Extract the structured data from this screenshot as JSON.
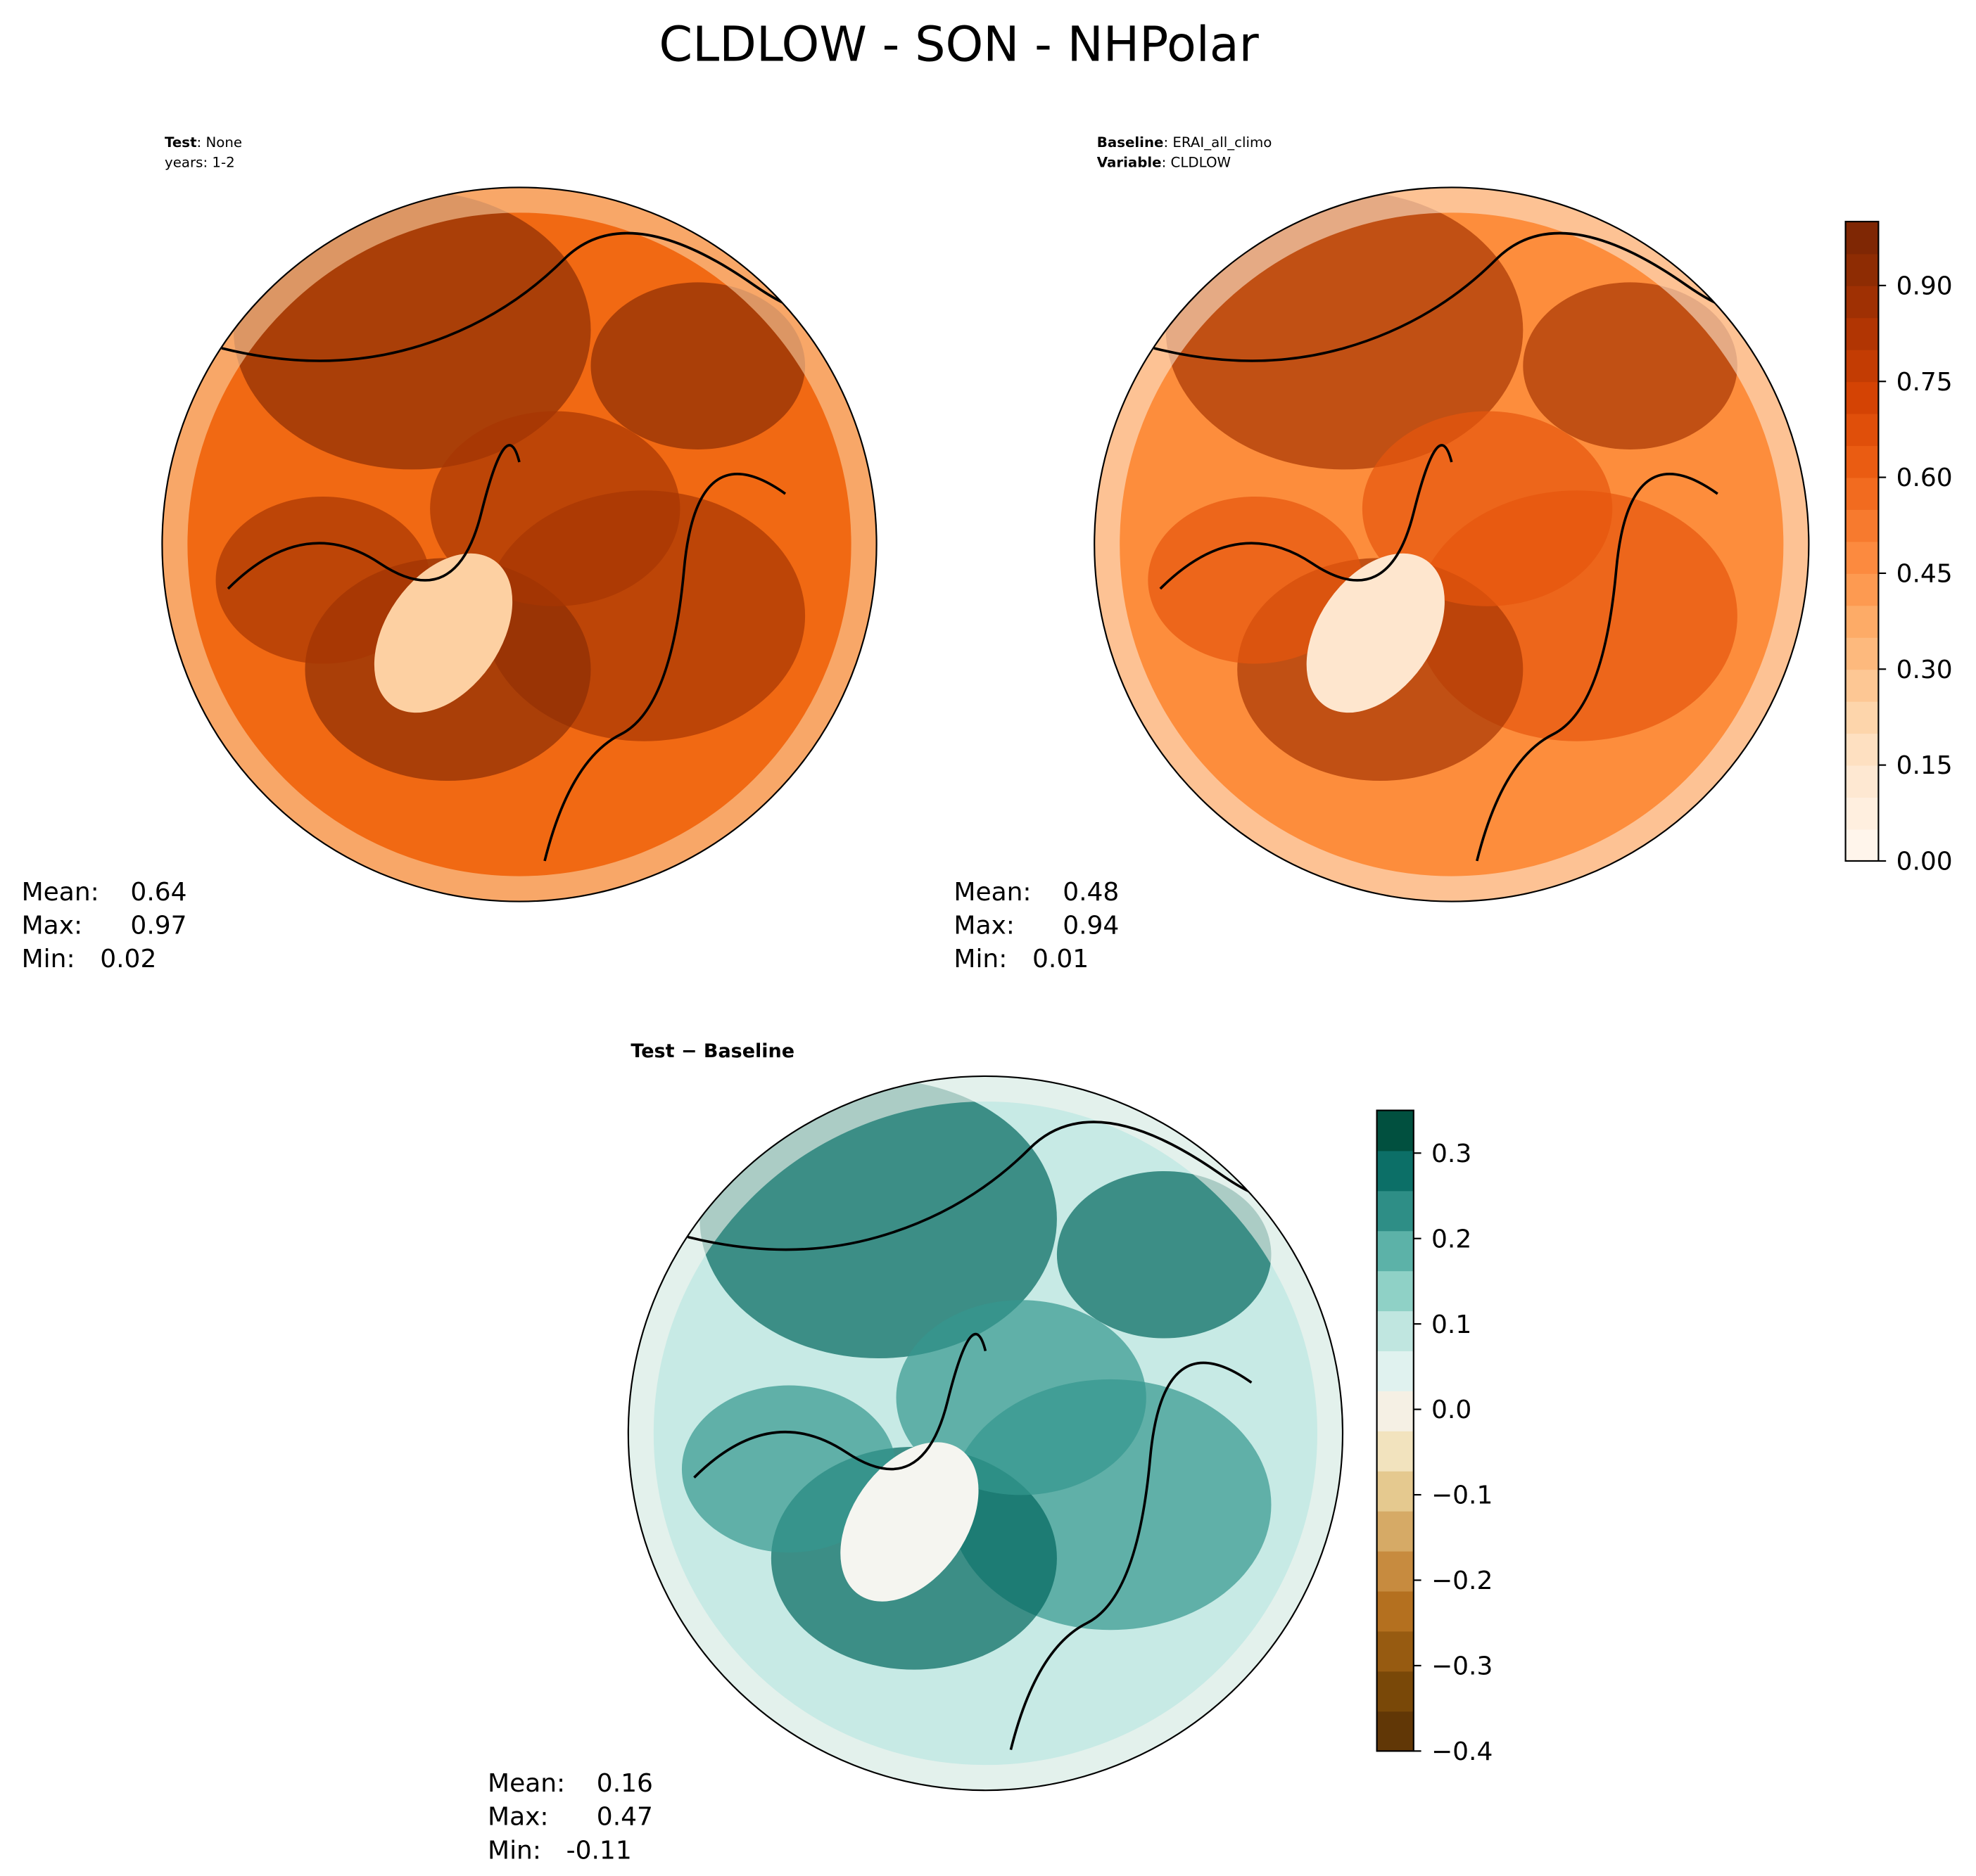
{
  "title": "CLDLOW - SON - NHPolar",
  "chart_data": [
    {
      "type": "map",
      "header": [
        {
          "bold": "Test",
          "text": ": None"
        },
        {
          "text": "years: 1-2"
        }
      ],
      "stats": [
        {
          "label": "Mean:",
          "value": 0.64
        },
        {
          "label": "Max:",
          "value": 0.97
        },
        {
          "label": "Min:",
          "value": 0.02
        }
      ],
      "palette": [
        "#fdd0a2",
        "#f16913",
        "#a63603",
        "#8c2d04"
      ]
    },
    {
      "type": "map",
      "header": [
        {
          "bold": "Baseline",
          "text": ": ERAI_all_climo"
        },
        {
          "bold": "Variable",
          "text": ": CLDLOW"
        }
      ],
      "stats": [
        {
          "label": "Mean:",
          "value": 0.48
        },
        {
          "label": "Max:",
          "value": 0.94
        },
        {
          "label": "Min:",
          "value": 0.01
        }
      ],
      "palette": [
        "#fee6ce",
        "#fd8d3c",
        "#e6550d",
        "#a63603"
      ],
      "ylim": [
        0,
        1.0
      ],
      "yticks": [
        {
          "value": 0,
          "label": "0.00"
        },
        {
          "value": 0.15,
          "label": "0.15"
        },
        {
          "value": 0.3,
          "label": "0.30"
        },
        {
          "value": 0.45,
          "label": "0.45"
        },
        {
          "value": 0.6,
          "label": "0.60"
        },
        {
          "value": 0.75,
          "label": "0.75"
        },
        {
          "value": 0.9,
          "label": "0.90"
        }
      ],
      "colors": [
        "#fff5eb",
        "#ffefdf",
        "#fee8d2",
        "#fee0c1",
        "#fdd5ab",
        "#fdc794",
        "#fdb97d",
        "#fdab67",
        "#fd9a51",
        "#fc8a3f",
        "#f77a2e",
        "#f26b1f",
        "#ea5c12",
        "#e04f0a",
        "#d44304",
        "#c33c03",
        "#b13503",
        "#9f3003",
        "#8e2c03",
        "#7f2704"
      ]
    },
    {
      "type": "map",
      "header": [
        {
          "bold": "Test − Baseline"
        }
      ],
      "stats": [
        {
          "label": "Mean:",
          "value": 0.16
        },
        {
          "label": "Max:",
          "value": 0.47
        },
        {
          "label": "Min:",
          "value": -0.11
        }
      ],
      "palette": [
        "#f5f5f0",
        "#c7eae5",
        "#35978f",
        "#01665e"
      ],
      "ylim": [
        -0.4,
        0.35
      ],
      "yticks": [
        {
          "value": -0.4,
          "label": "−0.4"
        },
        {
          "value": -0.3,
          "label": "−0.3"
        },
        {
          "value": -0.2,
          "label": "−0.2"
        },
        {
          "value": -0.1,
          "label": "−0.1"
        },
        {
          "value": 0,
          "label": "0.0"
        },
        0.1,
        0.2,
        0.3
      ],
      "colors": [
        "#613706",
        "#794808",
        "#975b11",
        "#b4701f",
        "#c78b3f",
        "#d6aa66",
        "#e5c98f",
        "#f2e3be",
        "#f5f0e4",
        "#e0f2ef",
        "#c0e6e0",
        "#8fd1c6",
        "#5cb2a8",
        "#2e8e86",
        "#0c6f67",
        "#01503f"
      ]
    }
  ]
}
